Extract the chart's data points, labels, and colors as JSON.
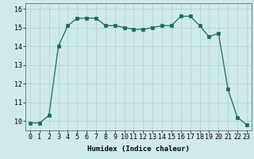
{
  "title": "",
  "xlabel": "Humidex (Indice chaleur)",
  "x": [
    0,
    1,
    2,
    3,
    4,
    5,
    6,
    7,
    8,
    9,
    10,
    11,
    12,
    13,
    14,
    15,
    16,
    17,
    18,
    19,
    20,
    21,
    22,
    23
  ],
  "y": [
    9.9,
    9.9,
    10.3,
    14.0,
    15.1,
    15.5,
    15.5,
    15.5,
    15.1,
    15.1,
    15.0,
    14.9,
    14.9,
    15.0,
    15.1,
    15.1,
    15.6,
    15.6,
    15.1,
    14.5,
    14.7,
    11.7,
    10.2,
    9.8
  ],
  "line_color": "#1a6b5a",
  "marker": "s",
  "markersize": 2.5,
  "bg_color": "#ceeaea",
  "grid_color": "#aacece",
  "ylim": [
    9.5,
    16.3
  ],
  "yticks": [
    10,
    11,
    12,
    13,
    14,
    15,
    16
  ],
  "xticks": [
    0,
    1,
    2,
    3,
    4,
    5,
    6,
    7,
    8,
    9,
    10,
    11,
    12,
    13,
    14,
    15,
    16,
    17,
    18,
    19,
    20,
    21,
    22,
    23
  ],
  "label_fontsize": 6.5,
  "tick_fontsize": 6.0
}
